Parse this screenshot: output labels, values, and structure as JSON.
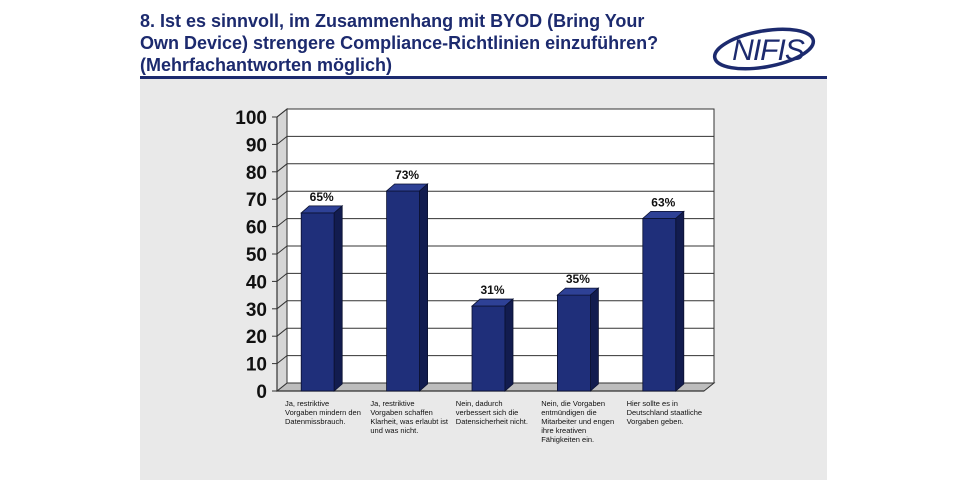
{
  "title_lines": [
    "8. Ist es sinnvoll, im Zusammenhang mit BYOD (Bring Your",
    "Own Device) strengere Compliance-Richtlinien einzuführen?",
    "(Mehrfachantworten möglich)"
  ],
  "logo_text": "NIFIS",
  "colors": {
    "title": "#1c2a6e",
    "bar_front": "#1f2f7a",
    "bar_top": "#2e4196",
    "bar_side": "#121c4f",
    "panel": "#e9e9e9"
  },
  "chart_data": {
    "type": "bar",
    "title": "8. Ist es sinnvoll, im Zusammenhang mit BYOD (Bring Your Own Device) strengere Compliance-Richtlinien einzuführen? (Mehrfachantworten möglich)",
    "categories": [
      "Ja, restriktive Vorgaben mindern den Datenmissbrauch.",
      "Ja, restriktive Vorgaben schaffen Klarheit, was erlaubt ist und was nicht.",
      "Nein, dadurch verbessert sich die Datensicherheit nicht.",
      "Nein, die Vorgaben entmündigen die Mitarbeiter und engen ihre kreativen Fähigkeiten ein.",
      "Hier sollte es in Deutschland staatliche Vorgaben geben."
    ],
    "values": [
      65,
      73,
      31,
      35,
      63
    ],
    "data_labels": [
      "65%",
      "73%",
      "31%",
      "35%",
      "63%"
    ],
    "yticks": [
      0,
      10,
      20,
      30,
      40,
      50,
      60,
      70,
      80,
      90,
      100
    ],
    "ylim": [
      0,
      100
    ],
    "xlabel": "",
    "ylabel": "",
    "grid": true
  }
}
